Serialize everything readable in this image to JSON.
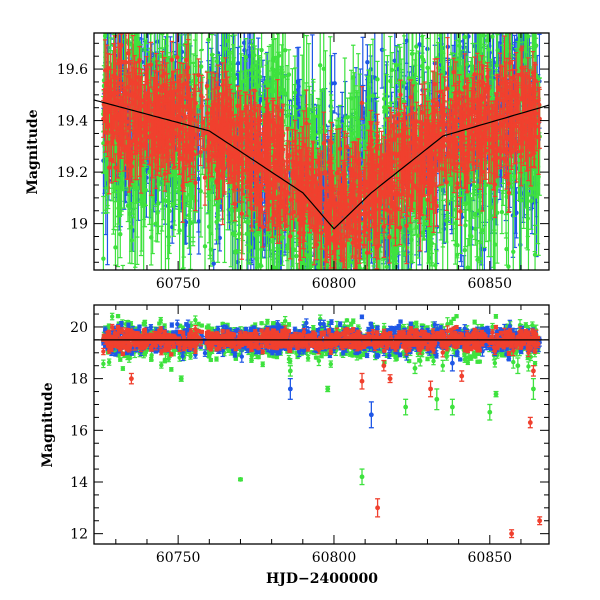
{
  "colors": {
    "blue": "#1f57e6",
    "green": "#3ee23e",
    "red": "#f0402e",
    "axis": "#000000"
  },
  "chart_data": [
    {
      "type": "scatter",
      "panel": "top",
      "xlim": [
        60723,
        60869
      ],
      "ylim": [
        19.74,
        18.82
      ],
      "y_inverted": true,
      "xlabel": "",
      "ylabel": "Magnitude",
      "x_ticks": [
        60750,
        60800,
        60850
      ],
      "x_tick_labels": [
        "60750",
        "60800",
        "60850"
      ],
      "y_ticks": [
        19.0,
        19.2,
        19.4,
        19.6
      ],
      "y_tick_labels": [
        "19",
        "19.2",
        "19.4",
        "19.6"
      ],
      "baseline_curve": [
        [
          60723,
          19.48
        ],
        [
          60760,
          19.36
        ],
        [
          60790,
          19.12
        ],
        [
          60800,
          18.98
        ],
        [
          60812,
          19.12
        ],
        [
          60835,
          19.34
        ],
        [
          60869,
          19.46
        ]
      ],
      "series": [
        {
          "color": "blue",
          "band": [
            [
              60723,
              19.44
            ],
            [
              60760,
              19.38
            ],
            [
              60790,
              19.15
            ],
            [
              60800,
              19.04
            ],
            [
              60812,
              19.15
            ],
            [
              60835,
              19.33
            ],
            [
              60869,
              19.45
            ]
          ],
          "scatter": 0.18,
          "err": [
            0.05,
            0.35
          ]
        },
        {
          "color": "green",
          "band": [
            [
              60723,
              19.42
            ],
            [
              60760,
              19.36
            ],
            [
              60790,
              19.14
            ],
            [
              60800,
              19.02
            ],
            [
              60812,
              19.14
            ],
            [
              60835,
              19.32
            ],
            [
              60869,
              19.44
            ]
          ],
          "scatter": 0.22,
          "err": [
            0.06,
            0.45
          ]
        },
        {
          "color": "red",
          "band": [
            [
              60723,
              19.46
            ],
            [
              60760,
              19.38
            ],
            [
              60790,
              19.14
            ],
            [
              60800,
              19.03
            ],
            [
              60812,
              19.14
            ],
            [
              60835,
              19.33
            ],
            [
              60869,
              19.46
            ]
          ],
          "scatter": 0.1,
          "err": [
            0.05,
            0.2
          ]
        }
      ]
    },
    {
      "type": "scatter",
      "panel": "bottom",
      "xlim": [
        60723,
        60869
      ],
      "ylim": [
        20.85,
        11.6
      ],
      "y_inverted": true,
      "xlabel": "HJD−2400000",
      "ylabel": "Magnitude",
      "x_ticks": [
        60750,
        60800,
        60850
      ],
      "x_tick_labels": [
        "60750",
        "60800",
        "60850"
      ],
      "y_ticks": [
        12,
        14,
        16,
        18,
        20
      ],
      "y_tick_labels": [
        "12",
        "14",
        "16",
        "18",
        "20"
      ],
      "baseline_curve": [
        [
          60723,
          19.5
        ],
        [
          60869,
          19.5
        ]
      ],
      "series": [
        {
          "color": "green",
          "band": [
            [
              60723,
              19.45
            ],
            [
              60869,
              19.45
            ]
          ],
          "scatter": 0.35,
          "err": [
            0.05,
            0.25
          ]
        },
        {
          "color": "blue",
          "band": [
            [
              60723,
              19.5
            ],
            [
              60869,
              19.5
            ]
          ],
          "scatter": 0.25,
          "err": [
            0.05,
            0.25
          ]
        },
        {
          "color": "red",
          "band": [
            [
              60723,
              19.5
            ],
            [
              60869,
              19.5
            ]
          ],
          "scatter": 0.18,
          "err": [
            0.05,
            0.2
          ]
        }
      ],
      "outliers": [
        {
          "color": "red",
          "x": 60735,
          "y": 18.0,
          "err": 0.2
        },
        {
          "color": "green",
          "x": 60751,
          "y": 18.0,
          "err": 0.1
        },
        {
          "color": "green",
          "x": 60770,
          "y": 14.1,
          "err": 0.05
        },
        {
          "color": "green",
          "x": 60786,
          "y": 18.3,
          "err": 0.2
        },
        {
          "color": "blue",
          "x": 60786,
          "y": 17.6,
          "err": 0.4
        },
        {
          "color": "green",
          "x": 60798,
          "y": 17.6,
          "err": 0.1
        },
        {
          "color": "green",
          "x": 60809,
          "y": 14.2,
          "err": 0.3
        },
        {
          "color": "red",
          "x": 60809,
          "y": 17.9,
          "err": 0.3
        },
        {
          "color": "blue",
          "x": 60812,
          "y": 16.6,
          "err": 0.5
        },
        {
          "color": "red",
          "x": 60814,
          "y": 13.0,
          "err": 0.35
        },
        {
          "color": "red",
          "x": 60816,
          "y": 18.5,
          "err": 0.2
        },
        {
          "color": "red",
          "x": 60818,
          "y": 18.0,
          "err": 0.15
        },
        {
          "color": "green",
          "x": 60823,
          "y": 16.9,
          "err": 0.3
        },
        {
          "color": "green",
          "x": 60826,
          "y": 18.4,
          "err": 0.2
        },
        {
          "color": "red",
          "x": 60831,
          "y": 17.6,
          "err": 0.3
        },
        {
          "color": "green",
          "x": 60833,
          "y": 17.2,
          "err": 0.4
        },
        {
          "color": "green",
          "x": 60838,
          "y": 16.9,
          "err": 0.3
        },
        {
          "color": "blue",
          "x": 60838,
          "y": 18.6,
          "err": 0.3
        },
        {
          "color": "red",
          "x": 60841,
          "y": 18.1,
          "err": 0.2
        },
        {
          "color": "green",
          "x": 60850,
          "y": 16.7,
          "err": 0.3
        },
        {
          "color": "green",
          "x": 60852,
          "y": 17.4,
          "err": 0.1
        },
        {
          "color": "red",
          "x": 60857,
          "y": 12.0,
          "err": 0.15
        },
        {
          "color": "green",
          "x": 60859,
          "y": 18.5,
          "err": 0.3
        },
        {
          "color": "red",
          "x": 60863,
          "y": 16.3,
          "err": 0.2
        },
        {
          "color": "green",
          "x": 60864,
          "y": 17.6,
          "err": 0.4
        },
        {
          "color": "red",
          "x": 60866,
          "y": 12.5,
          "err": 0.15
        },
        {
          "color": "red",
          "x": 60864,
          "y": 18.3,
          "err": 0.2
        }
      ]
    }
  ]
}
